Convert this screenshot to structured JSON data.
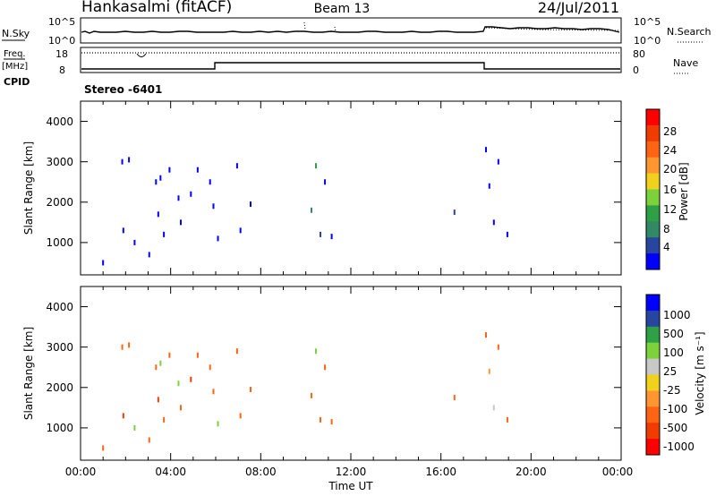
{
  "header": {
    "station": "Hankasalmi (fitACF)",
    "beam": "Beam 13",
    "date": "24/Jul/2011"
  },
  "noise_panel": {
    "left_label": "N.Sky",
    "right_label": "N.Search",
    "left_ticks": [
      "10^5",
      "10^0"
    ],
    "right_ticks": [
      "10^5",
      "10^0"
    ]
  },
  "freq_panel": {
    "left_label": "Freq.",
    "left_unit": "[MHz]",
    "right_label": "Nave",
    "left_ticks": [
      "18",
      "8"
    ],
    "right_ticks": [
      "80",
      "0"
    ],
    "cpid_label": "CPID",
    "cpid_text": "Stereo  -6401"
  },
  "colors": {
    "power": [
      "#0000ff",
      "#2846a0",
      "#318a64",
      "#2fa046",
      "#7dd23c",
      "#f0d21e",
      "#ff9632",
      "#ff6414",
      "#f03c00",
      "#ff0000"
    ],
    "velocity": [
      "#0000ff",
      "#2846a0",
      "#2fa046",
      "#7dd23c",
      "#c8c8c8",
      "#f0d21e",
      "#ff9632",
      "#ff6414",
      "#f03c00",
      "#ff0000"
    ]
  },
  "chart_data": [
    {
      "type": "heatmap",
      "panel": "power",
      "ylabel": "Slant Range [km]",
      "xlim": [
        0,
        24
      ],
      "ylim": [
        200,
        4500
      ],
      "yticks": [
        "1000",
        "2000",
        "3000",
        "4000"
      ],
      "colorbar_label": "Power [dB]",
      "colorbar_ticks": [
        "4",
        "8",
        "12",
        "16",
        "20",
        "24",
        "28"
      ],
      "legend": "right",
      "x": [
        1.0,
        1.85,
        1.9,
        2.15,
        2.4,
        3.05,
        3.35,
        3.45,
        3.55,
        3.7,
        3.95,
        4.35,
        4.45,
        4.9,
        5.2,
        5.75,
        5.9,
        6.1,
        6.95,
        7.1,
        7.55,
        10.25,
        10.45,
        10.65,
        10.85,
        11.15,
        16.6,
        18.0,
        18.15,
        18.35,
        18.55,
        18.95
      ],
      "y": [
        500,
        3000,
        1300,
        3050,
        1000,
        700,
        2500,
        1700,
        2600,
        1200,
        2800,
        2100,
        1500,
        2200,
        2800,
        2500,
        1900,
        1100,
        2900,
        1300,
        1950,
        1800,
        2900,
        1200,
        2500,
        1150,
        1750,
        3300,
        2400,
        1500,
        3000,
        1200
      ],
      "values": [
        4,
        4,
        4,
        4,
        4,
        4,
        4,
        4,
        4,
        4,
        4,
        4,
        4,
        4,
        4,
        4,
        4,
        4,
        4,
        4,
        4,
        12,
        16,
        8,
        4,
        4,
        8,
        4,
        4,
        4,
        4,
        4
      ]
    },
    {
      "type": "heatmap",
      "panel": "velocity",
      "xlabel": "Time UT",
      "ylabel": "Slant Range [km]",
      "xlim": [
        0,
        24
      ],
      "ylim": [
        200,
        4500
      ],
      "xticks": [
        "00:00",
        "04:00",
        "08:00",
        "12:00",
        "16:00",
        "20:00",
        "00:00"
      ],
      "yticks": [
        "1000",
        "2000",
        "3000",
        "4000"
      ],
      "colorbar_label": "Velocity  [m s⁻¹]",
      "colorbar_ticks": [
        "1000",
        "500",
        "100",
        "25",
        "-25",
        "-100",
        "-500",
        "-1000"
      ],
      "legend": "right",
      "x": [
        1.0,
        1.85,
        1.9,
        2.15,
        2.4,
        3.05,
        3.35,
        3.45,
        3.55,
        3.7,
        3.95,
        4.35,
        4.45,
        4.9,
        5.2,
        5.75,
        5.9,
        6.1,
        6.95,
        7.1,
        7.55,
        10.25,
        10.45,
        10.65,
        10.85,
        11.15,
        16.6,
        18.0,
        18.15,
        18.35,
        18.55,
        18.95
      ],
      "y": [
        500,
        3000,
        1300,
        3050,
        1000,
        700,
        2500,
        1700,
        2600,
        1200,
        2800,
        2100,
        1500,
        2200,
        2800,
        2500,
        1900,
        1100,
        2900,
        1300,
        1950,
        1800,
        2900,
        1200,
        2500,
        1150,
        1750,
        3300,
        2400,
        1500,
        3000,
        1200
      ],
      "values": [
        -300,
        -200,
        -600,
        -300,
        150,
        -300,
        -200,
        -700,
        200,
        -400,
        -200,
        200,
        -150,
        -800,
        -200,
        -500,
        -200,
        200,
        -150,
        -300,
        -200,
        -300,
        100,
        -400,
        -150,
        -150,
        -200,
        -300,
        -100,
        50,
        -300,
        -200
      ]
    }
  ]
}
